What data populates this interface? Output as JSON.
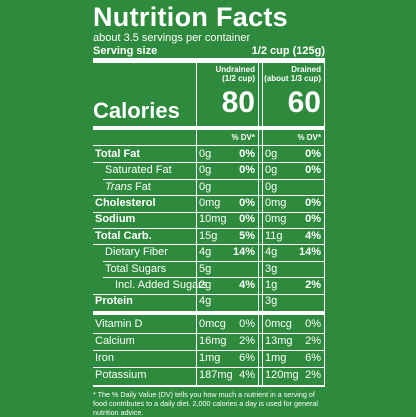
{
  "header": {
    "title": "Nutrition Facts",
    "servings": "about 3.5 servings per container",
    "serving_size_label": "Serving size",
    "serving_size_value": "1/2 cup (125g)"
  },
  "columns": [
    {
      "name": "Undrained",
      "sub": "(1/2 cup)",
      "calories": "80",
      "dv_header": "% DV*"
    },
    {
      "name": "Drained",
      "sub": "(about 1/3 cup)",
      "calories": "60",
      "dv_header": "% DV*"
    }
  ],
  "calories_label": "Calories",
  "rows": [
    {
      "label": "Total Fat",
      "cells": [
        [
          "0g",
          "0%"
        ],
        [
          "0g",
          "0%"
        ]
      ]
    },
    {
      "label": "Saturated Fat",
      "cells": [
        [
          "0g",
          "0%"
        ],
        [
          "0g",
          "0%"
        ]
      ]
    },
    {
      "label_italic": "Trans",
      "label": "Fat",
      "cells": [
        [
          "0g",
          null
        ],
        [
          "0g",
          null
        ]
      ]
    },
    {
      "label": "Cholesterol",
      "cells": [
        [
          "0mg",
          "0%"
        ],
        [
          "0mg",
          "0%"
        ]
      ]
    },
    {
      "label": "Sodium",
      "cells": [
        [
          "10mg",
          "0%"
        ],
        [
          "0mg",
          "0%"
        ]
      ]
    },
    {
      "label": "Total Carb.",
      "cells": [
        [
          "15g",
          "5%"
        ],
        [
          "11g",
          "4%"
        ]
      ]
    },
    {
      "label": "Dietary Fiber",
      "cells": [
        [
          "4g",
          "14%"
        ],
        [
          "4g",
          "14%"
        ]
      ]
    },
    {
      "label": "Total Sugars",
      "cells": [
        [
          "5g",
          null
        ],
        [
          "3g",
          null
        ]
      ]
    },
    {
      "label": "Incl. Added Sugars",
      "cells": [
        [
          "2g",
          "4%"
        ],
        [
          "1g",
          "2%"
        ]
      ]
    },
    {
      "label": "Protein",
      "cells": [
        [
          "4g",
          null
        ],
        [
          "3g",
          null
        ]
      ]
    },
    {
      "label": "Vitamin D",
      "cells": [
        [
          "0mcg",
          "0%"
        ],
        [
          "0mcg",
          "0%"
        ]
      ]
    },
    {
      "label": "Calcium",
      "cells": [
        [
          "16mg",
          "2%"
        ],
        [
          "13mg",
          "2%"
        ]
      ]
    },
    {
      "label": "Iron",
      "cells": [
        [
          "1mg",
          "6%"
        ],
        [
          "1mg",
          "6%"
        ]
      ]
    },
    {
      "label": "Potassium",
      "cells": [
        [
          "187mg",
          "4%"
        ],
        [
          "120mg",
          "2%"
        ]
      ]
    }
  ],
  "footnote": "* The % Daily Value (DV) tells you how much a nutrient in a serving of food contributes to a daily diet. 2,000 calories a day is used for general nutrition advice."
}
